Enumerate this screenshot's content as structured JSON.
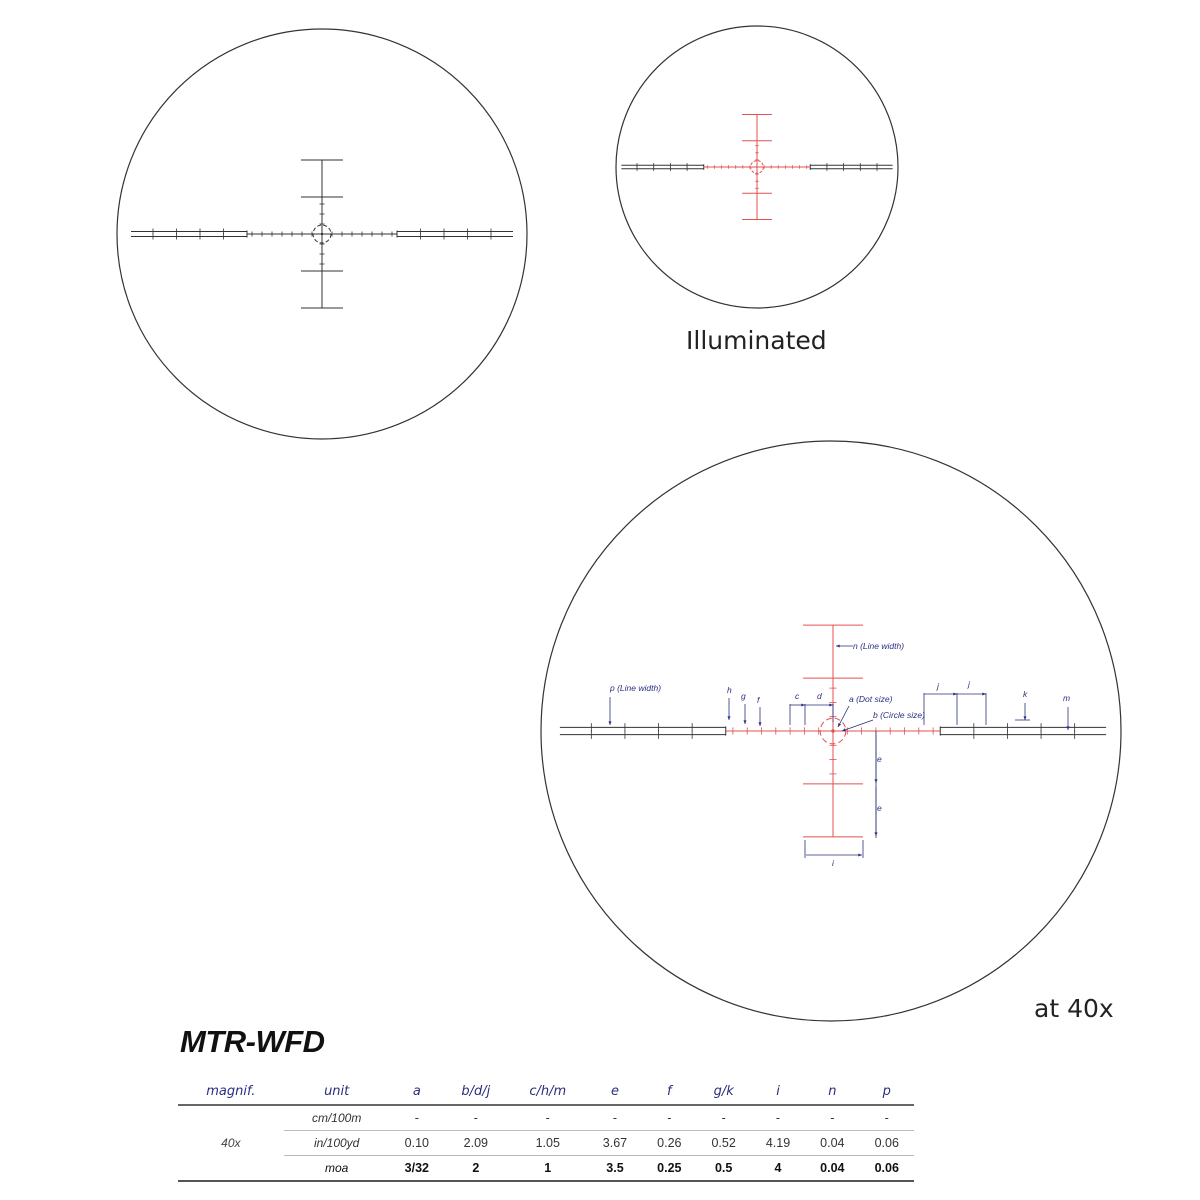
{
  "captions": {
    "illuminated": "Illuminated",
    "magnification": "at 40x"
  },
  "colors": {
    "reticle": "#333333",
    "illuminated": "#e05252",
    "annotation": "#2b2f7e"
  },
  "annotations": {
    "p": "p (Line width)",
    "h": "h",
    "g": "g",
    "f": "f",
    "c": "c",
    "d": "d",
    "a": "a (Dot size)",
    "b": "b (Circle size)",
    "n": "n (Line width)",
    "j": "j",
    "k": "k",
    "m": "m",
    "e": "e",
    "i": "i"
  },
  "model": "MTR-WFD",
  "spec_table": {
    "headers": [
      "magnif.",
      "unit",
      "a",
      "b/d/j",
      "c/h/m",
      "e",
      "f",
      "g/k",
      "i",
      "n",
      "p"
    ],
    "magnification": "40x",
    "rows": [
      {
        "unit": "cm/100m",
        "values": [
          "-",
          "-",
          "-",
          "-",
          "-",
          "-",
          "-",
          "-",
          "-"
        ]
      },
      {
        "unit": "in/100yd",
        "values": [
          "0.10",
          "2.09",
          "1.05",
          "3.67",
          "0.26",
          "0.52",
          "4.19",
          "0.04",
          "0.06"
        ]
      },
      {
        "unit": "moa",
        "values": [
          "3/32",
          "2",
          "1",
          "3.5",
          "0.25",
          "0.5",
          "4",
          "0.04",
          "0.06"
        ]
      }
    ]
  }
}
